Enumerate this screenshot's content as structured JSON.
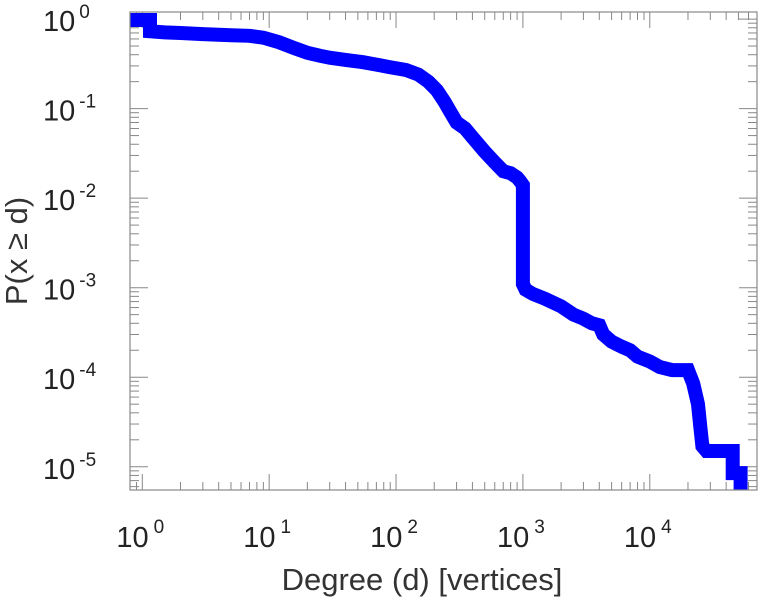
{
  "chart_data": {
    "type": "line",
    "title": "",
    "xlabel": "Degree (d) [vertices]",
    "ylabel": "P(x ≥ d)",
    "x_scale": "log",
    "y_scale": "log",
    "xlim": [
      0.8,
      70000
    ],
    "ylim": [
      5.5e-06,
      1.2
    ],
    "grid": false,
    "legend": "none",
    "x_ticks": [
      {
        "base": "10",
        "exp": "0",
        "value": 1
      },
      {
        "base": "10",
        "exp": "1",
        "value": 10
      },
      {
        "base": "10",
        "exp": "2",
        "value": 100
      },
      {
        "base": "10",
        "exp": "3",
        "value": 1000
      },
      {
        "base": "10",
        "exp": "4",
        "value": 10000
      }
    ],
    "y_ticks": [
      {
        "base": "10",
        "exp": "0",
        "value": 1
      },
      {
        "base": "10",
        "exp": "-1",
        "value": 0.1
      },
      {
        "base": "10",
        "exp": "-2",
        "value": 0.01
      },
      {
        "base": "10",
        "exp": "-3",
        "value": 0.001
      },
      {
        "base": "10",
        "exp": "-4",
        "value": 0.0001
      },
      {
        "base": "10",
        "exp": "-5",
        "value": 1e-05
      }
    ],
    "series": [
      {
        "color": "#0000ff",
        "points": [
          [
            0.8,
            1.0
          ],
          [
            1.15,
            1.0
          ],
          [
            1.15,
            0.73
          ],
          [
            1.5,
            0.71
          ],
          [
            2,
            0.7
          ],
          [
            3,
            0.68
          ],
          [
            5,
            0.66
          ],
          [
            7,
            0.65
          ],
          [
            9,
            0.62
          ],
          [
            12,
            0.55
          ],
          [
            16,
            0.47
          ],
          [
            20,
            0.42
          ],
          [
            25,
            0.39
          ],
          [
            30,
            0.37
          ],
          [
            40,
            0.35
          ],
          [
            55,
            0.33
          ],
          [
            70,
            0.31
          ],
          [
            90,
            0.29
          ],
          [
            120,
            0.27
          ],
          [
            150,
            0.24
          ],
          [
            180,
            0.2
          ],
          [
            210,
            0.16
          ],
          [
            240,
            0.12
          ],
          [
            270,
            0.09
          ],
          [
            300,
            0.07
          ],
          [
            350,
            0.06
          ],
          [
            400,
            0.048
          ],
          [
            500,
            0.033
          ],
          [
            600,
            0.025
          ],
          [
            700,
            0.02
          ],
          [
            800,
            0.019
          ],
          [
            900,
            0.017
          ],
          [
            950,
            0.0155
          ],
          [
            1000,
            0.014
          ],
          [
            1000,
            0.0011
          ],
          [
            1050,
            0.00095
          ],
          [
            1200,
            0.00085
          ],
          [
            1500,
            0.00075
          ],
          [
            2000,
            0.00062
          ],
          [
            2500,
            0.0005
          ],
          [
            3000,
            0.00045
          ],
          [
            3500,
            0.0004
          ],
          [
            4000,
            0.00038
          ],
          [
            4300,
            0.0003
          ],
          [
            5000,
            0.00025
          ],
          [
            6000,
            0.00022
          ],
          [
            7000,
            0.0002
          ],
          [
            8000,
            0.00017
          ],
          [
            10000,
            0.00015
          ],
          [
            12000,
            0.00013
          ],
          [
            15000,
            0.00012
          ],
          [
            20000,
            0.00012
          ],
          [
            22000,
            8.5e-05
          ],
          [
            24000,
            5e-05
          ],
          [
            25000,
            2.8e-05
          ],
          [
            26000,
            1.7e-05
          ],
          [
            28000,
            1.5e-05
          ],
          [
            45000,
            1.5e-05
          ],
          [
            45000,
            8.5e-06
          ],
          [
            52000,
            8.5e-06
          ],
          [
            52000,
            5.5e-06
          ]
        ]
      }
    ]
  }
}
